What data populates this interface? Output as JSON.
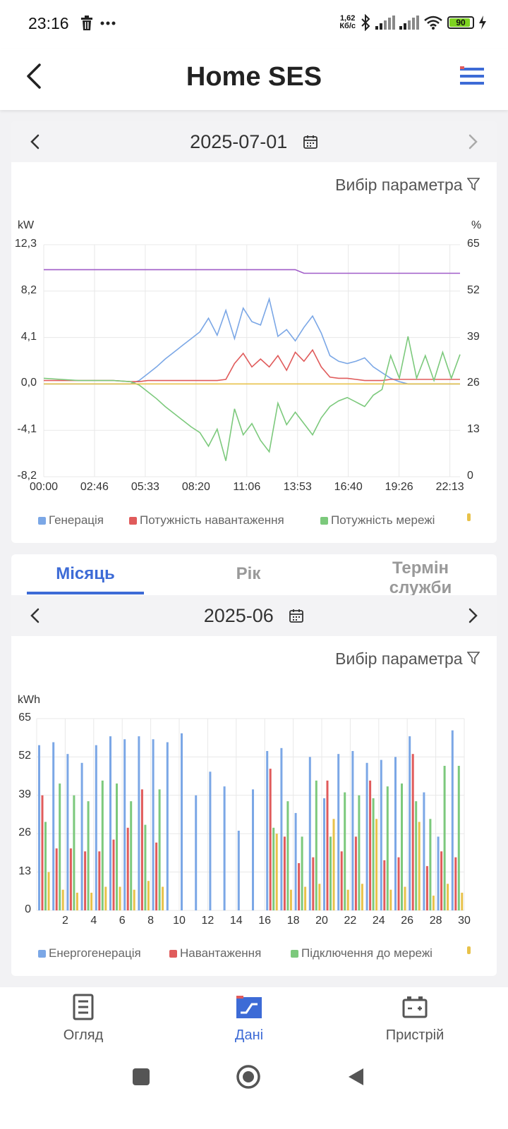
{
  "status_bar": {
    "time": "23:16",
    "speed_value": "1,62",
    "speed_unit": "Кб/с",
    "battery": "90",
    "battery_level": 0.9
  },
  "header": {
    "title": "Home SES"
  },
  "daily": {
    "date": "2025-07-01",
    "param_label": "Вибір параметра",
    "unit_left": "kW",
    "unit_right": "%",
    "y_ticks_left": [
      "12,3",
      "8,2",
      "4,1",
      "0,0",
      "-4,1",
      "-8,2"
    ],
    "y_ticks_right": [
      "65",
      "52",
      "39",
      "26",
      "13",
      "0"
    ],
    "x_ticks": [
      "00:00",
      "02:46",
      "05:33",
      "08:20",
      "11:06",
      "13:53",
      "16:40",
      "19:26",
      "22:13"
    ],
    "legend": [
      {
        "label": "Генерація",
        "color": "#7ba7e6"
      },
      {
        "label": "Потужність навантаження",
        "color": "#e05b5b"
      },
      {
        "label": "Потужність мережі",
        "color": "#7cc97c"
      },
      {
        "label": "",
        "color": "#e8c24a"
      }
    ]
  },
  "tabs": [
    {
      "label": "Місяць",
      "active": true
    },
    {
      "label": "Рік",
      "active": false
    },
    {
      "label": "Термін служби",
      "active": false
    }
  ],
  "monthly": {
    "date": "2025-06",
    "param_label": "Вибір параметра",
    "unit": "kWh",
    "y_ticks": [
      "65",
      "52",
      "39",
      "26",
      "13",
      "0"
    ],
    "x_ticks": [
      "2",
      "4",
      "6",
      "8",
      "10",
      "12",
      "14",
      "16",
      "18",
      "20",
      "22",
      "24",
      "26",
      "28",
      "30"
    ],
    "legend": [
      {
        "label": "Енергогенерація",
        "color": "#7ba7e6"
      },
      {
        "label": "Навантаження",
        "color": "#e05b5b"
      },
      {
        "label": "Підключення до мережі",
        "color": "#7cc97c"
      },
      {
        "label": "",
        "color": "#e8c24a"
      }
    ]
  },
  "chart_data": [
    {
      "type": "line",
      "title": "",
      "xlabel": "",
      "ylabel": "kW",
      "y2label": "%",
      "ylim": [
        -8.2,
        12.3
      ],
      "y2lim": [
        0,
        65
      ],
      "x_range_hours": [
        0,
        24
      ],
      "x": [
        0,
        1,
        2,
        3,
        4,
        5,
        5.5,
        6,
        6.5,
        7,
        7.5,
        8,
        8.5,
        9,
        9.5,
        10,
        10.5,
        11,
        11.5,
        12,
        12.5,
        13,
        13.5,
        14,
        14.5,
        15,
        15.5,
        16,
        16.5,
        17,
        17.5,
        18,
        18.5,
        19,
        19.5,
        20,
        20.5,
        21,
        21.5,
        22,
        22.5,
        23,
        23.5,
        24
      ],
      "series": [
        {
          "name": "Генерація",
          "axis": "left",
          "color": "#7ba7e6",
          "values": [
            0,
            0,
            0,
            0,
            0,
            0,
            0.3,
            0.9,
            1.5,
            2.2,
            2.8,
            3.4,
            4.0,
            4.6,
            5.8,
            4.3,
            6.5,
            4.0,
            6.7,
            5.5,
            5.2,
            7.5,
            4.2,
            4.8,
            3.8,
            5.0,
            6.0,
            4.5,
            2.5,
            2.0,
            1.8,
            2.0,
            2.3,
            1.5,
            1.0,
            0.5,
            0.2,
            0,
            0,
            0,
            0,
            0,
            0,
            0
          ]
        },
        {
          "name": "Потужність навантаження",
          "axis": "left",
          "color": "#e05b5b",
          "values": [
            0.3,
            0.3,
            0.3,
            0.3,
            0.3,
            0.2,
            0.2,
            0.3,
            0.3,
            0.3,
            0.3,
            0.3,
            0.3,
            0.3,
            0.3,
            0.3,
            0.4,
            1.8,
            2.7,
            1.5,
            2.2,
            1.5,
            2.5,
            1.2,
            2.8,
            2.0,
            3.0,
            1.5,
            0.6,
            0.5,
            0.5,
            0.4,
            0.3,
            0.3,
            0.3,
            0.4,
            0.4,
            0.4,
            0.4,
            0.4,
            0.4,
            0.4,
            0.4,
            0.4
          ]
        },
        {
          "name": "Потужність мережі",
          "axis": "left",
          "color": "#7cc97c",
          "values": [
            0.5,
            0.4,
            0.3,
            0.3,
            0.3,
            0.2,
            -0.1,
            -0.7,
            -1.3,
            -2.0,
            -2.6,
            -3.2,
            -3.8,
            -4.3,
            -5.5,
            -4.0,
            -6.8,
            -2.2,
            -4.5,
            -3.5,
            -5.0,
            -6.0,
            -1.7,
            -3.6,
            -2.5,
            -3.5,
            -4.5,
            -3.0,
            -2.0,
            -1.5,
            -1.2,
            -1.6,
            -2.0,
            -1.0,
            -0.5,
            2.5,
            0.5,
            4.2,
            0.5,
            2.5,
            0.3,
            2.8,
            0.5,
            2.6
          ]
        },
        {
          "name": "",
          "axis": "left",
          "color": "#e8c24a",
          "values": [
            0,
            0,
            0,
            0,
            0,
            0,
            0,
            0,
            0,
            0,
            0,
            0,
            0,
            0,
            0,
            0,
            0,
            0,
            0,
            0,
            0,
            0,
            0,
            0,
            0,
            0,
            0,
            0,
            0,
            0,
            0,
            0,
            0,
            0,
            0,
            0,
            0,
            0,
            0,
            0,
            0,
            0,
            0,
            0
          ]
        },
        {
          "name": "",
          "axis": "right",
          "color": "#a05cc8",
          "values": [
            58,
            58,
            58,
            58,
            58,
            58,
            58,
            58,
            58,
            58,
            58,
            58,
            58,
            58,
            58,
            58,
            58,
            58,
            58,
            58,
            58,
            58,
            58,
            58,
            58,
            57,
            57,
            57,
            57,
            57,
            57,
            57,
            57,
            57,
            57,
            57,
            57,
            57,
            57,
            57,
            57,
            57,
            57,
            57
          ]
        }
      ]
    },
    {
      "type": "bar",
      "title": "",
      "xlabel": "",
      "ylabel": "kWh",
      "ylim": [
        0,
        65
      ],
      "categories": [
        "1",
        "2",
        "3",
        "4",
        "5",
        "6",
        "7",
        "8",
        "9",
        "10",
        "11",
        "12",
        "13",
        "14",
        "15",
        "16",
        "17",
        "18",
        "19",
        "20",
        "21",
        "22",
        "23",
        "24",
        "25",
        "26",
        "27",
        "28",
        "29",
        "30"
      ],
      "series": [
        {
          "name": "Енергогенерація",
          "color": "#7ba7e6",
          "values": [
            56,
            57,
            53,
            50,
            56,
            59,
            58,
            59,
            58,
            57,
            60,
            39,
            47,
            42,
            27,
            41,
            54,
            55,
            33,
            52,
            38,
            53,
            54,
            50,
            51,
            52,
            59,
            40,
            25,
            61
          ]
        },
        {
          "name": "Навантаження",
          "color": "#e05b5b",
          "values": [
            39,
            21,
            21,
            20,
            20,
            24,
            28,
            41,
            23,
            0,
            0,
            0,
            0,
            0,
            0,
            0,
            48,
            25,
            16,
            18,
            44,
            20,
            25,
            44,
            17,
            18,
            53,
            15,
            20,
            18
          ]
        },
        {
          "name": "Підключення до мережі",
          "color": "#7cc97c",
          "values": [
            30,
            43,
            39,
            37,
            44,
            43,
            37,
            29,
            41,
            0,
            0,
            0,
            0,
            0,
            0,
            0,
            28,
            37,
            25,
            44,
            25,
            40,
            39,
            38,
            42,
            43,
            37,
            31,
            49,
            49
          ]
        },
        {
          "name": "",
          "color": "#e8c24a",
          "values": [
            13,
            7,
            6,
            6,
            8,
            8,
            7,
            10,
            8,
            0,
            0,
            0,
            0,
            0,
            0,
            0,
            26,
            7,
            8,
            9,
            31,
            7,
            9,
            31,
            7,
            8,
            30,
            5,
            9,
            6
          ]
        }
      ]
    }
  ]
}
